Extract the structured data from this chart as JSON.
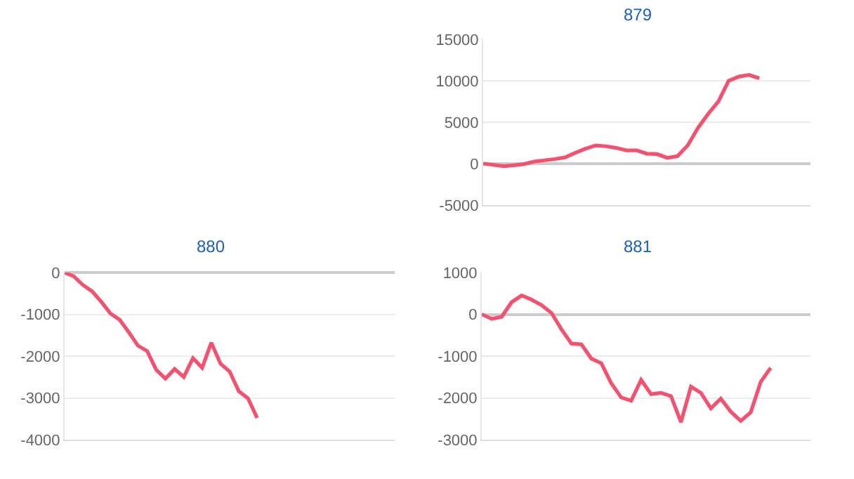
{
  "chart_data": [
    {
      "type": "line",
      "title": "879",
      "categories": [
        null,
        null,
        null,
        null,
        null,
        null,
        null,
        null,
        null,
        null,
        null,
        null,
        null,
        null,
        null,
        null,
        null,
        null,
        null,
        null,
        null,
        null,
        null,
        null,
        null,
        null,
        null,
        null,
        null,
        null,
        null,
        null,
        null
      ],
      "series": [
        {
          "color": "#f7506e",
          "values": [
            0,
            -150,
            -300,
            -200,
            -50,
            250,
            400,
            550,
            750,
            1300,
            1800,
            2200,
            2100,
            1900,
            1600,
            1600,
            1200,
            1150,
            700,
            900,
            2200,
            4300,
            6000,
            7500,
            10000,
            10500,
            10700,
            10300,
            null,
            null,
            null,
            null,
            null
          ]
        }
      ],
      "ylim": [
        -5000,
        15000
      ],
      "yticks": [
        -5000,
        0,
        5000,
        10000,
        15000
      ],
      "grid": "y",
      "tick_labels": "y"
    },
    {
      "type": "line",
      "title": "880",
      "categories": [
        null,
        null,
        null,
        null,
        null,
        null,
        null,
        null,
        null,
        null,
        null,
        null,
        null,
        null,
        null,
        null,
        null,
        null,
        null,
        null,
        null,
        null,
        null,
        null,
        null,
        null,
        null,
        null,
        null,
        null,
        null,
        null,
        null,
        null,
        null,
        null,
        null
      ],
      "series": [
        {
          "color": "#f7506e",
          "values": [
            0,
            -90,
            -300,
            -450,
            -700,
            -980,
            -1130,
            -1430,
            -1750,
            -1880,
            -2330,
            -2540,
            -2310,
            -2500,
            -2050,
            -2280,
            -1680,
            -2180,
            -2370,
            -2840,
            -3010,
            -3480,
            null,
            null,
            null,
            null,
            null,
            null,
            null,
            null,
            null,
            null,
            null,
            null,
            null,
            null,
            null
          ]
        }
      ],
      "ylim": [
        -4000,
        0
      ],
      "yticks": [
        -4000,
        -3000,
        -2000,
        -1000,
        0
      ],
      "grid": "y",
      "tick_labels": "y"
    },
    {
      "type": "line",
      "title": "881",
      "categories": [
        null,
        null,
        null,
        null,
        null,
        null,
        null,
        null,
        null,
        null,
        null,
        null,
        null,
        null,
        null,
        null,
        null,
        null,
        null,
        null,
        null,
        null,
        null,
        null,
        null,
        null,
        null,
        null,
        null,
        null,
        null,
        null,
        null,
        null
      ],
      "series": [
        {
          "color": "#f7506e",
          "values": [
            0,
            -110,
            -60,
            290,
            450,
            350,
            220,
            30,
            -360,
            -700,
            -720,
            -1060,
            -1170,
            -1650,
            -1990,
            -2070,
            -1570,
            -1910,
            -1880,
            -1960,
            -2580,
            -1730,
            -1880,
            -2250,
            -2020,
            -2330,
            -2550,
            -2350,
            -1620,
            -1280,
            null,
            null,
            null,
            null
          ]
        }
      ],
      "ylim": [
        -3000,
        1000
      ],
      "yticks": [
        -3000,
        -2000,
        -1000,
        0,
        1000
      ],
      "grid": "y",
      "tick_labels": "y"
    }
  ]
}
